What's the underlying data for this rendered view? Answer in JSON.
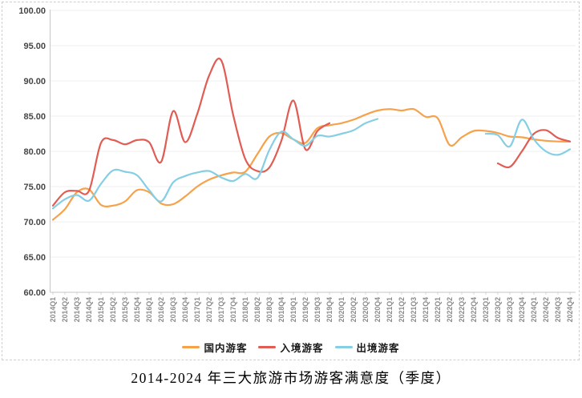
{
  "title": "2014-2024 年三大旅游市场游客满意度（季度）",
  "chart_data": {
    "type": "line",
    "title": "2014-2024 年三大旅游市场游客满意度（季度）",
    "xlabel": "",
    "ylabel": "",
    "ylim": [
      60,
      100
    ],
    "y_tick_step": 5,
    "y_tick_labels": [
      "100.00",
      "95.00",
      "90.00",
      "85.00",
      "80.00",
      "75.00",
      "70.00",
      "65.00",
      "60.00"
    ],
    "grid": true,
    "legend_position": "bottom",
    "line_style": "smooth",
    "categories": [
      "2014Q1",
      "2014Q2",
      "2014Q3",
      "2014Q4",
      "2015Q1",
      "2015Q2",
      "2015Q3",
      "2015Q4",
      "2016Q1",
      "2016Q2",
      "2016Q3",
      "2016Q4",
      "2017Q1",
      "2017Q2",
      "2017Q3",
      "2017Q4",
      "2018Q1",
      "2018Q2",
      "2018Q3",
      "2018Q4",
      "2019Q1",
      "2019Q2",
      "2019Q3",
      "2019Q4",
      "2020Q1",
      "2020Q2",
      "2020Q3",
      "2020Q4",
      "2021Q1",
      "2021Q2",
      "2021Q3",
      "2021Q4",
      "2022Q1",
      "2022Q2",
      "2022Q3",
      "2022Q4",
      "2023Q1",
      "2023Q2",
      "2023Q3",
      "2023Q4",
      "2024Q1",
      "2024Q2",
      "2024Q3",
      "2024Q4"
    ],
    "series": [
      {
        "key": "domestic",
        "name": "国内游客",
        "color": "#F7A14A",
        "values": [
          70.3,
          71.8,
          74.2,
          74.6,
          72.4,
          72.3,
          72.9,
          74.5,
          74.2,
          72.6,
          72.5,
          73.6,
          75.0,
          76.0,
          76.6,
          77.0,
          77.1,
          79.6,
          82.1,
          82.6,
          81.7,
          81.2,
          83.3,
          83.7,
          84.0,
          84.5,
          85.2,
          85.8,
          86.0,
          85.8,
          86.0,
          84.9,
          84.7,
          80.9,
          82.0,
          82.9,
          82.9,
          82.6,
          82.1,
          82.0,
          81.7,
          81.5,
          81.4,
          81.4
        ]
      },
      {
        "key": "inbound",
        "name": "入境游客",
        "color": "#E15C53",
        "values": [
          72.3,
          74.2,
          74.4,
          74.4,
          81.2,
          81.6,
          81.0,
          81.6,
          81.3,
          78.5,
          85.7,
          81.3,
          85.3,
          90.8,
          92.9,
          85.1,
          78.9,
          77.2,
          77.7,
          81.5,
          87.2,
          80.3,
          82.9,
          84.0,
          null,
          null,
          null,
          null,
          null,
          null,
          null,
          null,
          null,
          null,
          null,
          null,
          null,
          78.3,
          77.8,
          80.0,
          82.5,
          83.0,
          81.9,
          81.4
        ]
      },
      {
        "key": "outbound",
        "name": "出境游客",
        "color": "#85CEE4",
        "values": [
          71.9,
          73.2,
          73.8,
          73.0,
          75.4,
          77.3,
          77.1,
          76.6,
          74.5,
          72.9,
          75.6,
          76.5,
          77.0,
          77.2,
          76.3,
          75.8,
          76.8,
          76.2,
          80.2,
          82.8,
          81.7,
          80.8,
          82.2,
          82.1,
          82.5,
          83.0,
          84.0,
          84.6,
          null,
          null,
          null,
          null,
          null,
          null,
          null,
          null,
          82.5,
          82.3,
          80.7,
          84.5,
          81.7,
          80.0,
          79.5,
          80.3
        ]
      }
    ],
    "axis_colors": {
      "axis_line": "#c6c6c6",
      "gridline": "#efefef",
      "y_tick_text": "#454545",
      "x_tick_text": "#8c8c8c"
    }
  }
}
